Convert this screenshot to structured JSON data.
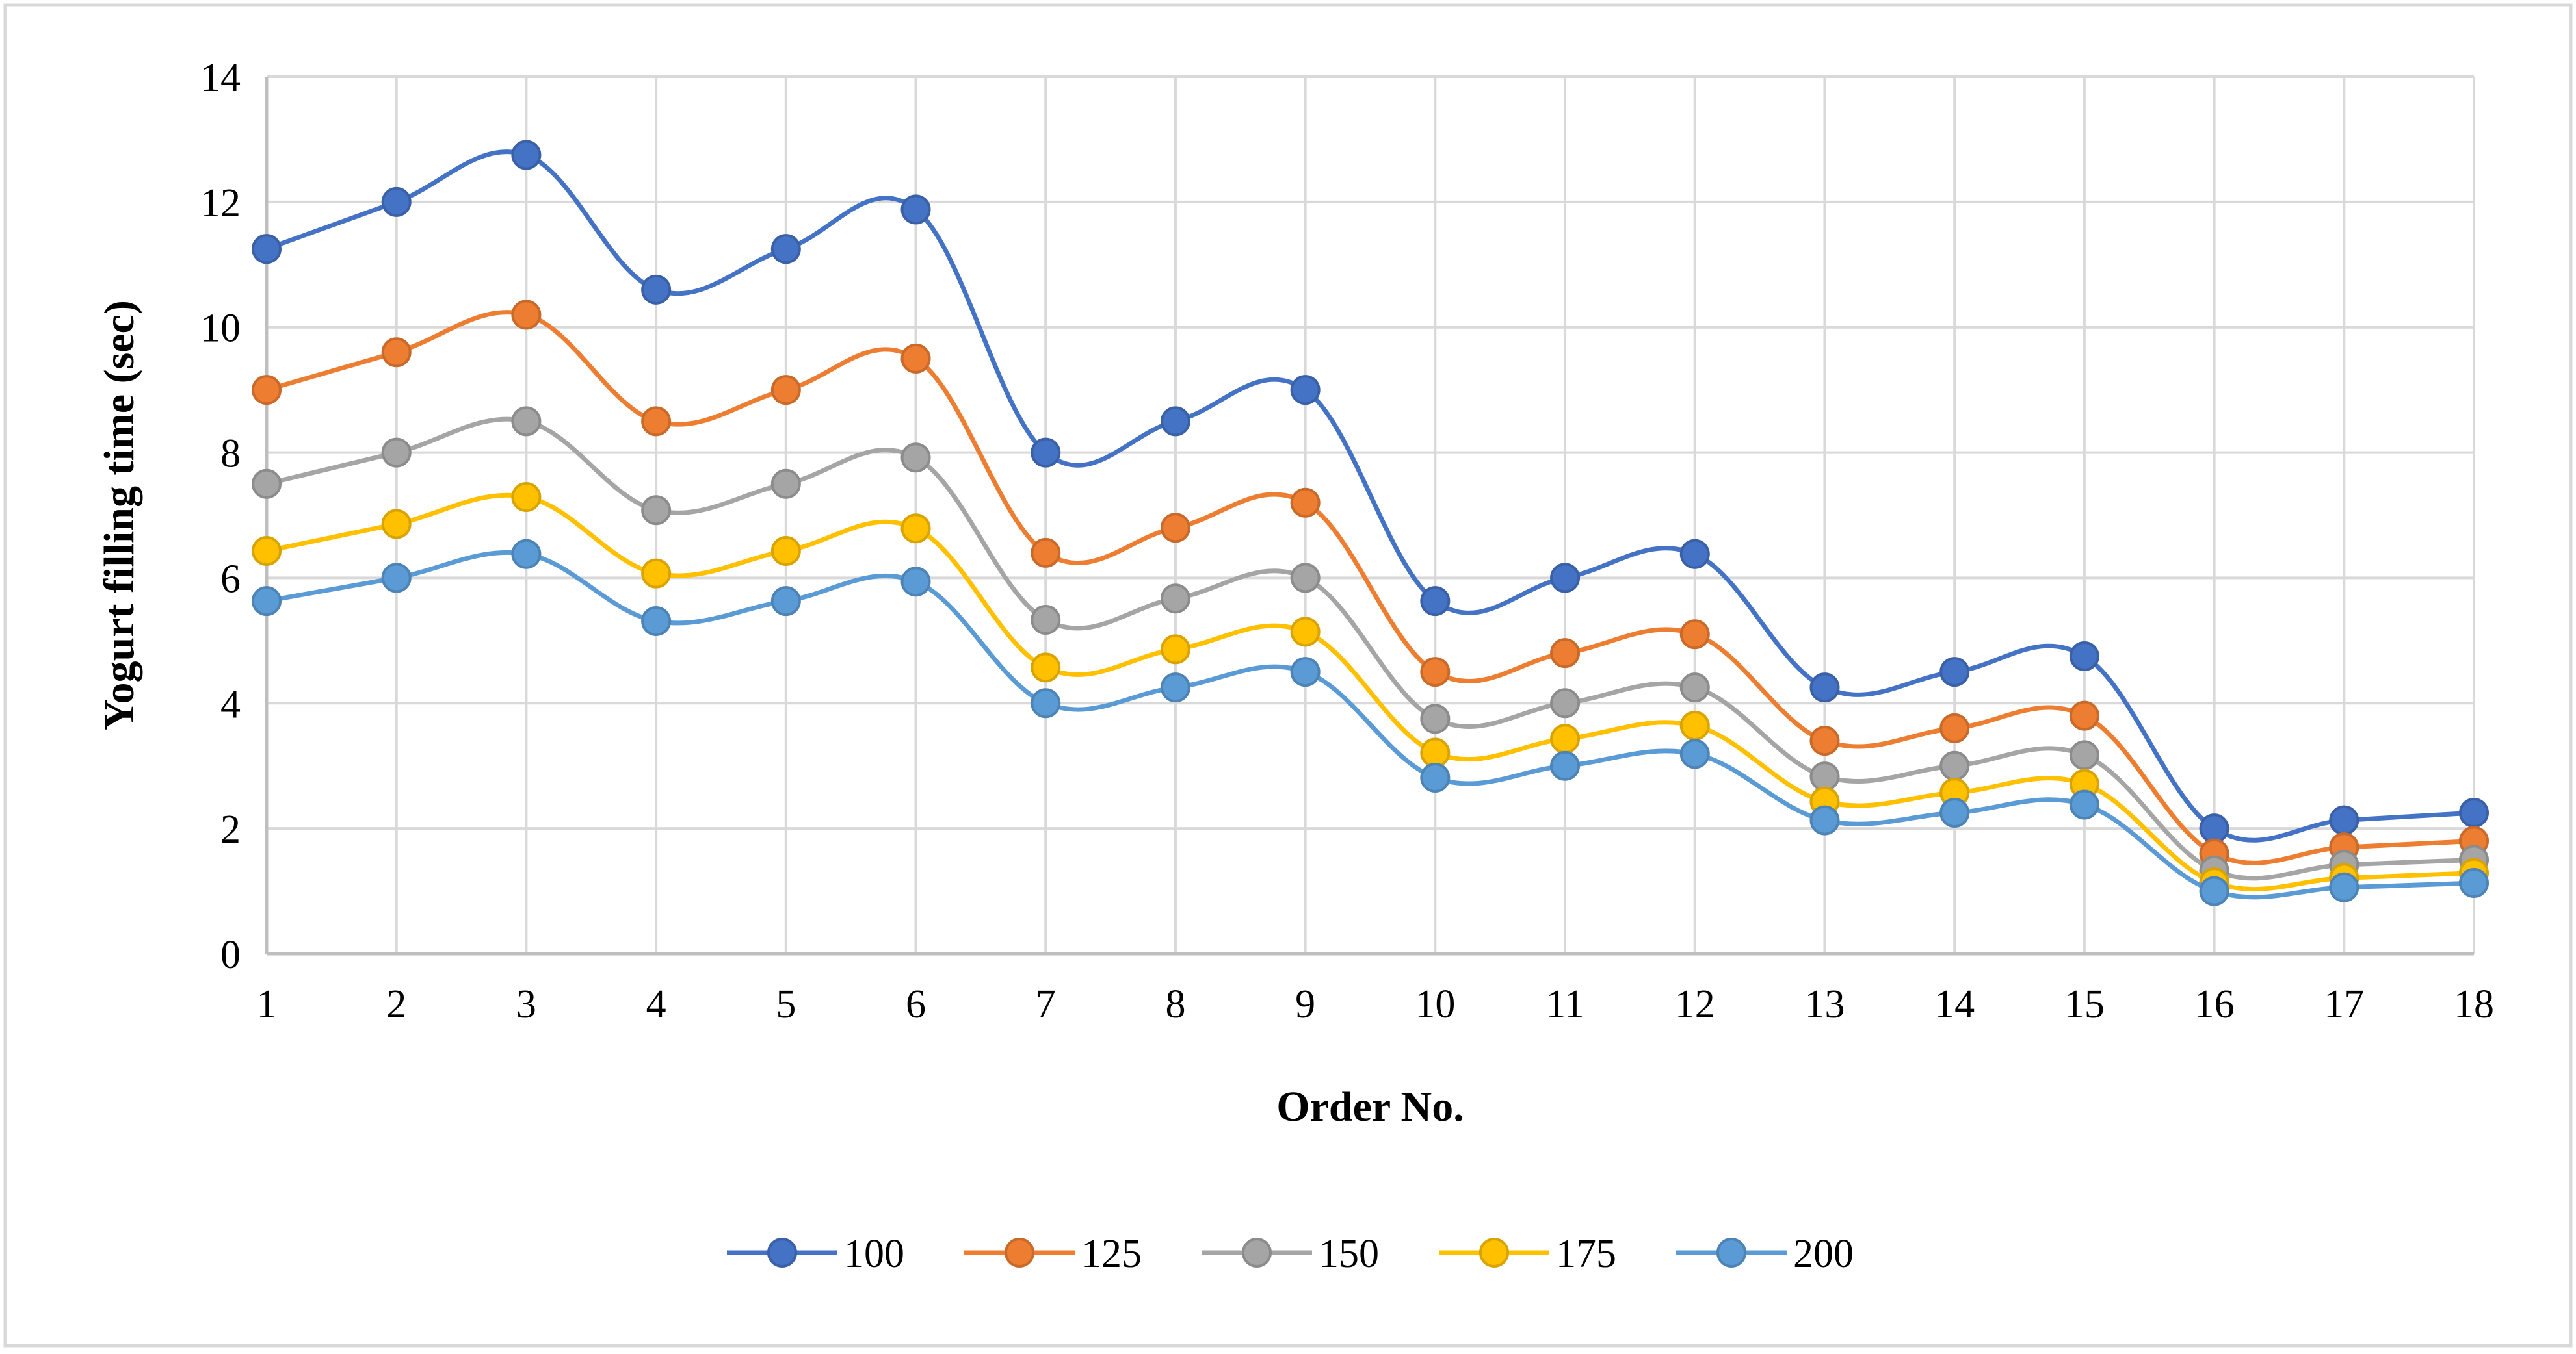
{
  "chart_data": {
    "type": "line",
    "title": "",
    "xlabel": "Order No.",
    "ylabel": "Yogurt filling time (sec)",
    "ylim": [
      0,
      14
    ],
    "yticks": [
      0,
      2,
      4,
      6,
      8,
      10,
      12,
      14
    ],
    "grid": true,
    "smooth": true,
    "legend_position": "bottom",
    "categories": [
      "1",
      "2",
      "3",
      "4",
      "5",
      "6",
      "7",
      "8",
      "9",
      "10",
      "11",
      "12",
      "13",
      "14",
      "15",
      "16",
      "17",
      "18"
    ],
    "series": [
      {
        "name": "100",
        "color": "#4472C4",
        "values": [
          11.25,
          12.0,
          12.75,
          10.6,
          11.25,
          11.88,
          8.0,
          8.5,
          9.0,
          5.63,
          6.0,
          6.38,
          4.25,
          4.5,
          4.75,
          2.0,
          2.13,
          2.25
        ]
      },
      {
        "name": "125",
        "color": "#ED7D31",
        "values": [
          9.0,
          9.6,
          10.2,
          8.5,
          9.0,
          9.5,
          6.4,
          6.8,
          7.2,
          4.5,
          4.8,
          5.1,
          3.4,
          3.6,
          3.8,
          1.6,
          1.7,
          1.8
        ]
      },
      {
        "name": "150",
        "color": "#A5A5A5",
        "values": [
          7.5,
          8.0,
          8.5,
          7.08,
          7.5,
          7.92,
          5.33,
          5.67,
          6.0,
          3.75,
          4.0,
          4.25,
          2.83,
          3.0,
          3.17,
          1.33,
          1.42,
          1.5
        ]
      },
      {
        "name": "175",
        "color": "#FFC000",
        "values": [
          6.43,
          6.86,
          7.29,
          6.07,
          6.43,
          6.79,
          4.57,
          4.86,
          5.14,
          3.21,
          3.43,
          3.64,
          2.43,
          2.57,
          2.71,
          1.14,
          1.21,
          1.29
        ]
      },
      {
        "name": "200",
        "color": "#5B9BD5",
        "values": [
          5.63,
          6.0,
          6.38,
          5.31,
          5.63,
          5.94,
          4.0,
          4.25,
          4.5,
          2.81,
          3.0,
          3.19,
          2.13,
          2.25,
          2.38,
          1.0,
          1.06,
          1.13
        ]
      }
    ]
  },
  "colors": {
    "grid": "#D9D9D9",
    "frame": "#D9D9D9",
    "axis": "#BFBFBF"
  }
}
